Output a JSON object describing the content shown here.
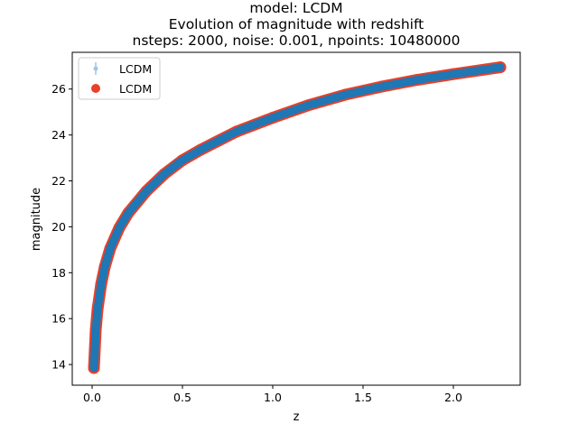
{
  "chart_data": {
    "type": "scatter",
    "title_lines": [
      "model: LCDM",
      "Evolution of magnitude with redshift",
      "nsteps: 2000, noise: 0.001, npoints: 10480000"
    ],
    "xlabel": "z",
    "ylabel": "magnitude",
    "xlim": [
      -0.11,
      2.37
    ],
    "ylim": [
      13.1,
      27.6
    ],
    "xticks": [
      0.0,
      0.5,
      1.0,
      1.5,
      2.0
    ],
    "xtick_labels": [
      "0.0",
      "0.5",
      "1.0",
      "1.5",
      "2.0"
    ],
    "yticks": [
      14,
      16,
      18,
      20,
      22,
      24,
      26
    ],
    "ytick_labels": [
      "14",
      "16",
      "18",
      "20",
      "22",
      "24",
      "26"
    ],
    "grid": false,
    "legend_position": "upper-left",
    "series": [
      {
        "name": "LCDM",
        "kind": "errorbar",
        "color": "#1f77b4",
        "x": [
          0.01,
          0.02,
          0.03,
          0.05,
          0.07,
          0.1,
          0.15,
          0.2,
          0.3,
          0.4,
          0.5,
          0.6,
          0.7,
          0.8,
          0.9,
          1.0,
          1.2,
          1.4,
          1.6,
          1.8,
          2.0,
          2.26
        ],
        "y": [
          13.85,
          15.5,
          16.4,
          17.5,
          18.25,
          19.05,
          19.95,
          20.6,
          21.55,
          22.3,
          22.9,
          23.35,
          23.75,
          24.15,
          24.45,
          24.75,
          25.3,
          25.75,
          26.1,
          26.4,
          26.65,
          26.95
        ]
      },
      {
        "name": "LCDM",
        "kind": "scatter",
        "color": "#e8402a",
        "x": [
          0.01,
          0.02,
          0.03,
          0.05,
          0.07,
          0.1,
          0.15,
          0.2,
          0.3,
          0.4,
          0.5,
          0.6,
          0.7,
          0.8,
          0.9,
          1.0,
          1.2,
          1.4,
          1.6,
          1.8,
          2.0,
          2.26
        ],
        "y": [
          13.85,
          15.5,
          16.4,
          17.5,
          18.25,
          19.05,
          19.95,
          20.6,
          21.55,
          22.3,
          22.9,
          23.35,
          23.75,
          24.15,
          24.45,
          24.75,
          25.3,
          25.75,
          26.1,
          26.4,
          26.65,
          26.95
        ]
      }
    ]
  }
}
